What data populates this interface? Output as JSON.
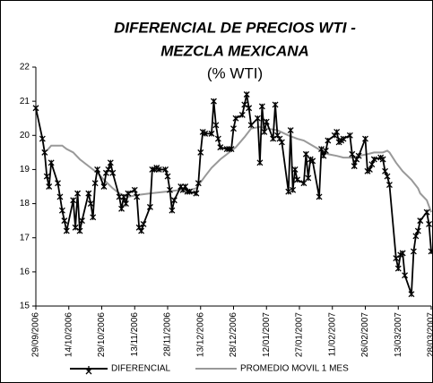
{
  "chart_data": {
    "type": "line",
    "title": [
      "DIFERENCIAL DE PRECIOS WTI -",
      "MEZCLA MEXICANA"
    ],
    "subtitle": "(% WTI)",
    "legend": "bottom",
    "xlim": [
      "29/09/2006",
      "28/03/2007"
    ],
    "xticks": [
      "29/09/2006",
      "14/10/2006",
      "29/10/2006",
      "13/11/2006",
      "28/11/2006",
      "13/12/2006",
      "28/12/2006",
      "12/01/2007",
      "27/01/2007",
      "11/02/2007",
      "26/02/2007",
      "13/03/2007",
      "28/03/2007"
    ],
    "ylim": [
      15,
      22
    ],
    "yticks": [
      15,
      16,
      17,
      18,
      19,
      20,
      21,
      22
    ],
    "series": [
      {
        "name": "DIFERENCIAL",
        "color": "#000000",
        "marker": "star",
        "x": [
          "29/09/2006",
          "02/10/2006",
          "03/10/2006",
          "04/10/2006",
          "05/10/2006",
          "06/10/2006",
          "09/10/2006",
          "10/10/2006",
          "11/10/2006",
          "12/10/2006",
          "13/10/2006",
          "16/10/2006",
          "17/10/2006",
          "18/10/2006",
          "19/10/2006",
          "20/10/2006",
          "23/10/2006",
          "24/10/2006",
          "25/10/2006",
          "26/10/2006",
          "27/10/2006",
          "30/10/2006",
          "31/10/2006",
          "01/11/2006",
          "02/11/2006",
          "03/11/2006",
          "06/11/2006",
          "07/11/2006",
          "08/11/2006",
          "09/11/2006",
          "10/11/2006",
          "13/11/2006",
          "14/11/2006",
          "15/11/2006",
          "16/11/2006",
          "17/11/2006",
          "20/11/2006",
          "21/11/2006",
          "22/11/2006",
          "23/11/2006",
          "24/11/2006",
          "27/11/2006",
          "28/11/2006",
          "29/11/2006",
          "30/11/2006",
          "01/12/2006",
          "04/12/2006",
          "05/12/2006",
          "06/12/2006",
          "07/12/2006",
          "08/12/2006",
          "11/12/2006",
          "12/12/2006",
          "13/12/2006",
          "14/12/2006",
          "15/12/2006",
          "18/12/2006",
          "19/12/2006",
          "20/12/2006",
          "21/12/2006",
          "22/12/2006",
          "25/12/2006",
          "26/12/2006",
          "27/12/2006",
          "28/12/2006",
          "29/12/2006",
          "01/01/2007",
          "02/01/2007",
          "03/01/2007",
          "04/01/2007",
          "05/01/2007",
          "08/01/2007",
          "09/01/2007",
          "10/01/2007",
          "11/01/2007",
          "12/01/2007",
          "15/01/2007",
          "16/01/2007",
          "17/01/2007",
          "18/01/2007",
          "19/01/2007",
          "22/01/2007",
          "23/01/2007",
          "24/01/2007",
          "25/01/2007",
          "26/01/2007",
          "29/01/2007",
          "30/01/2007",
          "31/01/2007",
          "01/02/2007",
          "02/02/2007",
          "05/02/2007",
          "06/02/2007",
          "07/02/2007",
          "08/02/2007",
          "09/02/2007",
          "12/02/2007",
          "13/02/2007",
          "14/02/2007",
          "15/02/2007",
          "16/02/2007",
          "19/02/2007",
          "20/02/2007",
          "21/02/2007",
          "22/02/2007",
          "23/02/2007",
          "26/02/2007",
          "27/02/2007",
          "28/02/2007",
          "01/03/2007",
          "02/03/2007",
          "05/03/2007",
          "06/03/2007",
          "07/03/2007",
          "08/03/2007",
          "09/03/2007",
          "12/03/2007",
          "13/03/2007",
          "14/03/2007",
          "15/03/2007",
          "16/03/2007",
          "19/03/2007",
          "20/03/2007",
          "21/03/2007",
          "22/03/2007",
          "23/03/2007",
          "26/03/2007",
          "27/03/2007",
          "28/03/2007"
        ],
        "values": [
          20.8,
          19.9,
          19.5,
          18.8,
          18.5,
          19.2,
          18.6,
          18.2,
          17.8,
          17.5,
          17.2,
          18.1,
          17.3,
          18.3,
          17.2,
          17.5,
          18.3,
          18.0,
          17.6,
          18.6,
          19.0,
          18.5,
          18.9,
          19.0,
          19.2,
          18.9,
          18.2,
          17.85,
          18.2,
          18.0,
          18.3,
          18.4,
          18.2,
          17.3,
          17.2,
          17.4,
          17.9,
          19.0,
          19.0,
          19.05,
          19.0,
          19.0,
          18.8,
          18.4,
          17.8,
          18.1,
          18.5,
          18.4,
          18.5,
          18.35,
          18.35,
          18.3,
          18.6,
          19.5,
          20.1,
          20.05,
          20.05,
          21.0,
          20.3,
          19.9,
          19.65,
          19.6,
          19.6,
          19.6,
          20.2,
          20.5,
          20.6,
          20.9,
          21.2,
          20.8,
          20.3,
          20.5,
          19.2,
          20.85,
          20.1,
          20.4,
          19.9,
          20.9,
          20.0,
          19.9,
          19.8,
          18.35,
          20.15,
          18.4,
          19.0,
          18.7,
          18.6,
          19.45,
          18.75,
          19.3,
          19.25,
          18.2,
          19.6,
          19.4,
          19.55,
          19.85,
          20.0,
          20.1,
          19.8,
          19.85,
          19.9,
          20.0,
          19.45,
          19.1,
          19.3,
          19.4,
          19.9,
          18.95,
          19.0,
          19.15,
          19.3,
          19.35,
          19.3,
          18.95,
          18.8,
          18.55,
          16.4,
          16.1,
          16.5,
          16.55,
          15.9,
          15.35,
          16.6,
          17.05,
          17.2,
          17.5,
          17.75,
          17.4,
          16.6
        ]
      },
      {
        "name": "PROMEDIO MOVIL 1 MES",
        "color": "#999999",
        "x": [
          "04/10/2006",
          "06/10/2006",
          "09/10/2006",
          "11/10/2006",
          "13/10/2006",
          "16/10/2006",
          "19/10/2006",
          "23/10/2006",
          "27/10/2006",
          "30/10/2006",
          "03/11/2006",
          "06/11/2006",
          "10/11/2006",
          "14/11/2006",
          "20/11/2006",
          "27/11/2006",
          "04/12/2006",
          "08/12/2006",
          "11/12/2006",
          "15/12/2006",
          "18/12/2006",
          "22/12/2006",
          "26/12/2006",
          "29/12/2006",
          "02/01/2007",
          "05/01/2007",
          "09/01/2007",
          "12/01/2007",
          "17/01/2007",
          "22/01/2007",
          "26/01/2007",
          "29/01/2007",
          "02/02/2007",
          "06/02/2007",
          "09/02/2007",
          "13/02/2007",
          "16/02/2007",
          "20/02/2007",
          "23/02/2007",
          "27/02/2007",
          "02/03/2007",
          "06/03/2007",
          "08/03/2007",
          "09/03/2007",
          "12/03/2007",
          "15/03/2007",
          "19/03/2007",
          "22/03/2007",
          "23/03/2007",
          "26/03/2007",
          "28/03/2007"
        ],
        "values": [
          19.55,
          19.7,
          19.7,
          19.7,
          19.6,
          19.5,
          19.3,
          19.1,
          18.9,
          18.7,
          18.45,
          18.3,
          18.2,
          18.25,
          18.3,
          18.35,
          18.4,
          18.4,
          18.45,
          18.8,
          19.05,
          19.3,
          19.5,
          19.65,
          19.95,
          20.2,
          20.25,
          20.2,
          20.15,
          20.0,
          19.9,
          19.85,
          19.7,
          19.55,
          19.45,
          19.4,
          19.35,
          19.35,
          19.4,
          19.45,
          19.5,
          19.5,
          19.55,
          19.5,
          19.2,
          18.95,
          18.7,
          18.45,
          18.3,
          18.1,
          17.75
        ]
      }
    ]
  }
}
